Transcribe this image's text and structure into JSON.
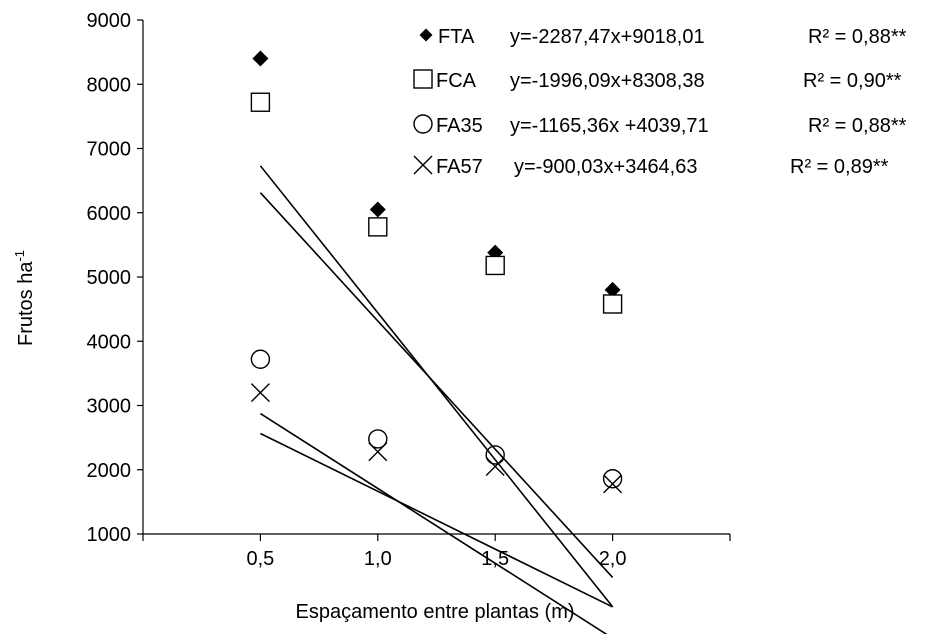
{
  "chart_data": {
    "type": "scatter",
    "xlabel": "Espaçamento entre plantas (m)",
    "ylabel": "Frutos ha",
    "ylabel_superscript": "-1",
    "ylim": [
      1000,
      9000
    ],
    "xlim": [
      0,
      2.5
    ],
    "y_ticks": [
      "1000",
      "2000",
      "3000",
      "4000",
      "5000",
      "6000",
      "7000",
      "8000",
      "9000"
    ],
    "x_ticks": [
      "0,5",
      "1,0",
      "1,5",
      "2,0"
    ],
    "x_tick_values": [
      0.5,
      1.0,
      1.5,
      2.0
    ],
    "x": [
      0.5,
      1.0,
      1.5,
      2.0
    ],
    "grid": false,
    "legend_position": "top-right",
    "series": [
      {
        "name": "FTA",
        "marker": "filled-diamond",
        "values": [
          8400,
          6050,
          5380,
          4800
        ],
        "equation": "y=-2287,47x+9018,01",
        "r2": "R² = 0,88**",
        "slope": -2287.47,
        "intercept": 9018.01
      },
      {
        "name": "FCA",
        "marker": "open-square",
        "values": [
          7720,
          5780,
          5180,
          4580
        ],
        "equation": "y=-1996,09x+8308,38",
        "r2": "R² = 0,90**",
        "slope": -1996.09,
        "intercept": 8308.38
      },
      {
        "name": "FA35",
        "marker": "open-circle",
        "values": [
          3720,
          2480,
          2230,
          1860
        ],
        "equation": "y=-1165,36x +4039,71",
        "r2": "R² = 0,88**",
        "slope": -1165.36,
        "intercept": 4039.71
      },
      {
        "name": "FA57",
        "marker": "cross",
        "values": [
          3200,
          2280,
          2050,
          1780
        ],
        "equation": "y=-900,03x+3464,63",
        "r2": "R² = 0,89**",
        "slope": -900.03,
        "intercept": 3464.63
      }
    ],
    "colors": {
      "ink": "#000000",
      "background": "#ffffff"
    }
  }
}
